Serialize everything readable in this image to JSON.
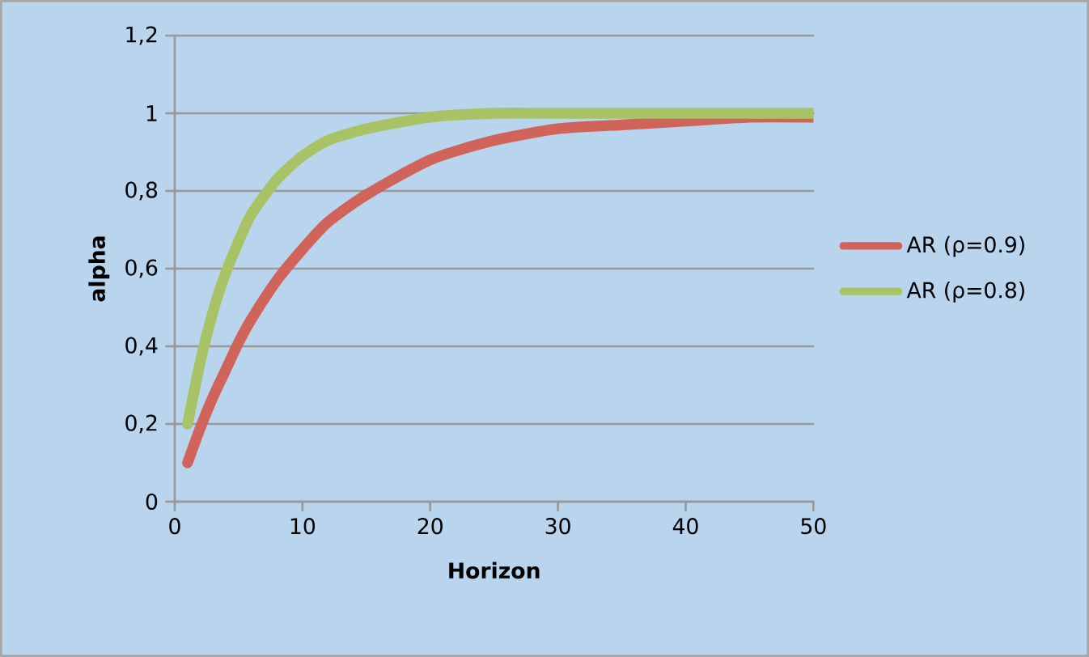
{
  "chart_data": {
    "type": "line",
    "xlabel": "Horizon",
    "ylabel": "alpha",
    "xlim": [
      0,
      50
    ],
    "xticks": [
      0,
      10,
      20,
      30,
      40,
      50
    ],
    "ylim": [
      0,
      1.2
    ],
    "yticks": [
      0,
      {
        "value": 0.2,
        "label": "0,2"
      },
      {
        "value": 0.4,
        "label": "0,4"
      },
      {
        "value": 0.6,
        "label": "0,6"
      },
      {
        "value": 0.8,
        "label": "0,8"
      },
      1,
      {
        "value": 1.2,
        "label": "1,2"
      }
    ],
    "grid": "y",
    "legend": "right",
    "marker": "none",
    "line_style": "solid",
    "series": [
      {
        "name": "AR (ρ=0.9)",
        "color": "#d0635a",
        "x": [
          1,
          2,
          3,
          4,
          5,
          6,
          8,
          10,
          12,
          15,
          20,
          25,
          30,
          35,
          40,
          45,
          50
        ],
        "values": [
          0.1,
          0.19,
          0.27,
          0.34,
          0.41,
          0.47,
          0.57,
          0.65,
          0.72,
          0.79,
          0.88,
          0.93,
          0.96,
          0.97,
          0.98,
          0.99,
          0.99
        ]
      },
      {
        "name": "AR (ρ=0.8)",
        "color": "#a8c365",
        "x": [
          1,
          2,
          3,
          4,
          5,
          6,
          8,
          10,
          12,
          15,
          20,
          25,
          30,
          40,
          50
        ],
        "values": [
          0.2,
          0.36,
          0.49,
          0.59,
          0.67,
          0.74,
          0.83,
          0.89,
          0.93,
          0.96,
          0.99,
          1,
          1,
          1,
          1
        ]
      }
    ]
  }
}
